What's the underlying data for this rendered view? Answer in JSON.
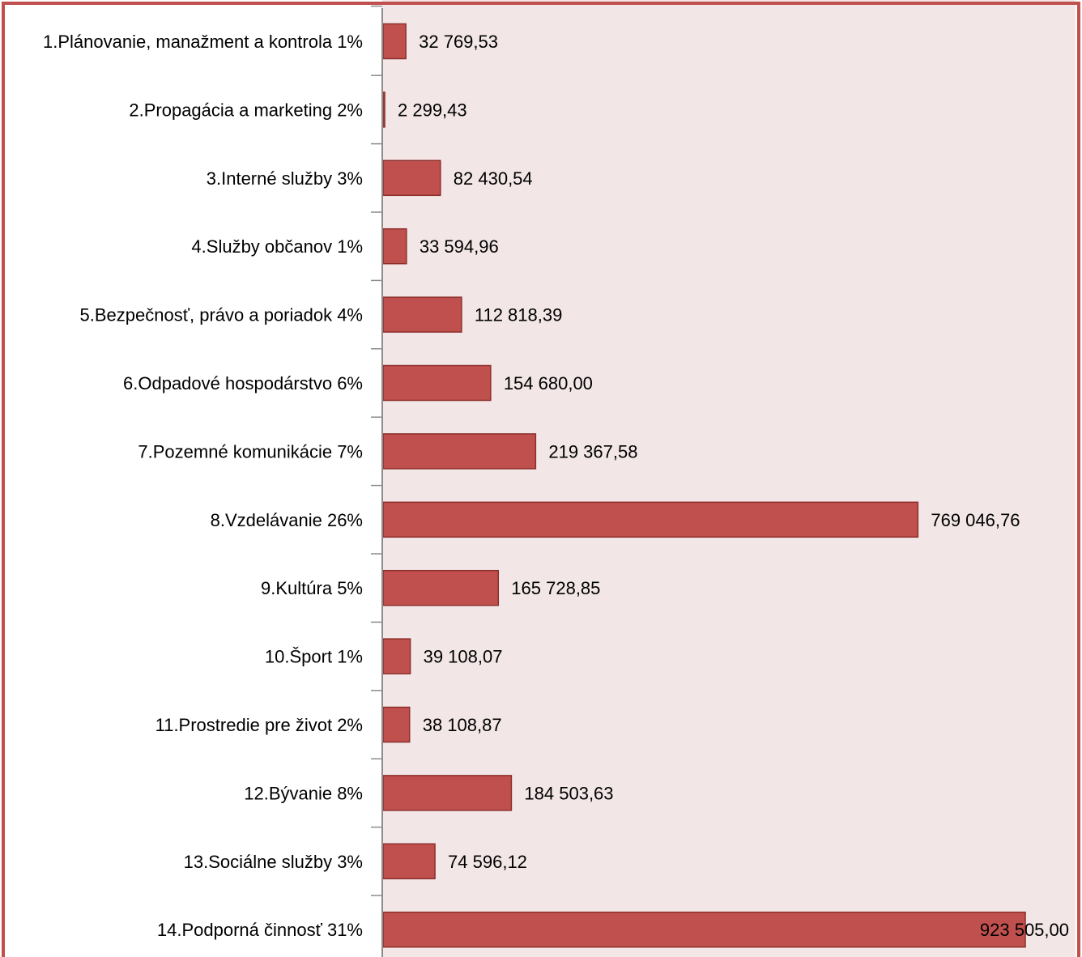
{
  "chart_data": {
    "type": "bar",
    "orientation": "horizontal",
    "categories": [
      "1.Plánovanie, manažment a kontrola 1%",
      "2.Propagácia a marketing 2%",
      "3.Interné služby 3%",
      "4.Služby občanov 1%",
      "5.Bezpečnosť, právo a poriadok 4%",
      "6.Odpadové hospodárstvo 6%",
      "7.Pozemné komunikácie 7%",
      "8.Vzdelávanie 26%",
      "9.Kultúra 5%",
      "10.Šport 1%",
      "11.Prostredie pre život 2%",
      "12.Bývanie 8%",
      "13.Sociálne služby 3%",
      "14.Podporná činnosť 31%"
    ],
    "values": [
      32769.53,
      2299.43,
      82430.54,
      33594.96,
      112818.39,
      154680.0,
      219367.58,
      769046.76,
      165728.85,
      39108.07,
      38108.87,
      184503.63,
      74596.12,
      923505.0
    ],
    "value_labels": [
      "32 769,53",
      "2 299,43",
      "82 430,54",
      "33 594,96",
      "112 818,39",
      "154 680,00",
      "219 367,58",
      "769 046,76",
      "165 728,85",
      "39 108,07",
      "38 108,87",
      "184 503,63",
      "74 596,12",
      "923 505,00"
    ],
    "title": "",
    "xlabel": "",
    "ylabel": "",
    "xlim": [
      0,
      1000000
    ],
    "grid": false,
    "legend": "none",
    "colors": {
      "bar_fill": "#c0504d",
      "bar_stroke": "#8c2f2c",
      "plot_background": "#f2e6e6",
      "frame": "#c0504d",
      "axis": "#8c8c8c"
    }
  }
}
